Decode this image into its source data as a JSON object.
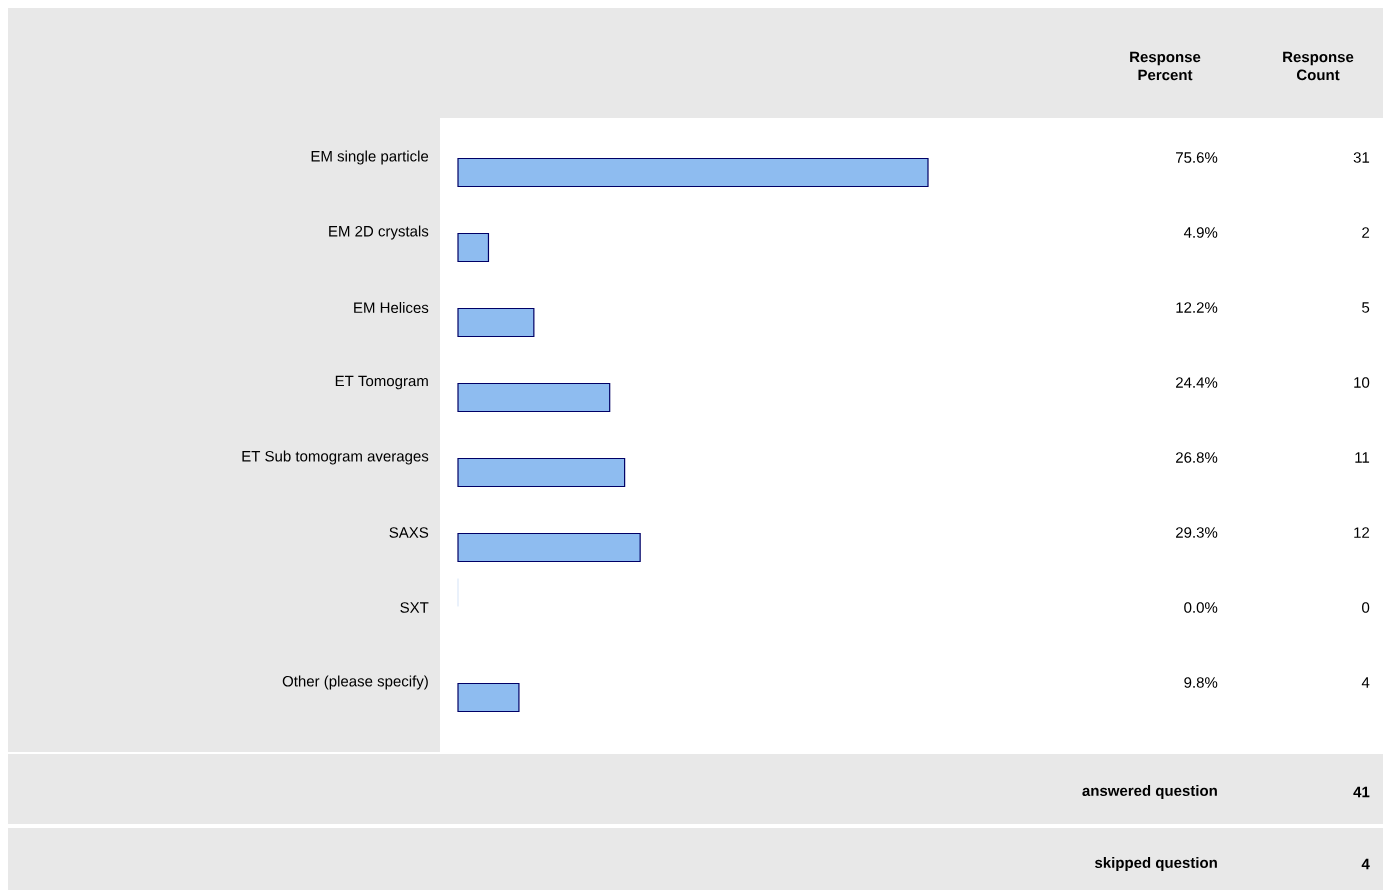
{
  "chart_data": {
    "type": "bar",
    "orientation": "horizontal",
    "categories": [
      "EM single particle",
      "EM 2D crystals",
      "EM Helices",
      "ET Tomogram",
      "ET Sub tomogram averages",
      "SAXS",
      "SXT",
      "Other (please specify)"
    ],
    "values": [
      75.6,
      4.9,
      12.2,
      24.4,
      26.8,
      29.3,
      0.0,
      9.8
    ],
    "value_labels": [
      "75.6%",
      "4.9%",
      "12.2%",
      "24.4%",
      "26.8%",
      "29.3%",
      "0.0%",
      "9.8%"
    ],
    "color": "#8ebcf0",
    "tick_labels": "y",
    "annotations": [
      "Response Percent",
      "Response Count",
      "31",
      "2",
      "5",
      "10",
      "11",
      "12",
      "0",
      "4",
      "answered question",
      "41",
      "skipped question",
      "4"
    ]
  }
}
